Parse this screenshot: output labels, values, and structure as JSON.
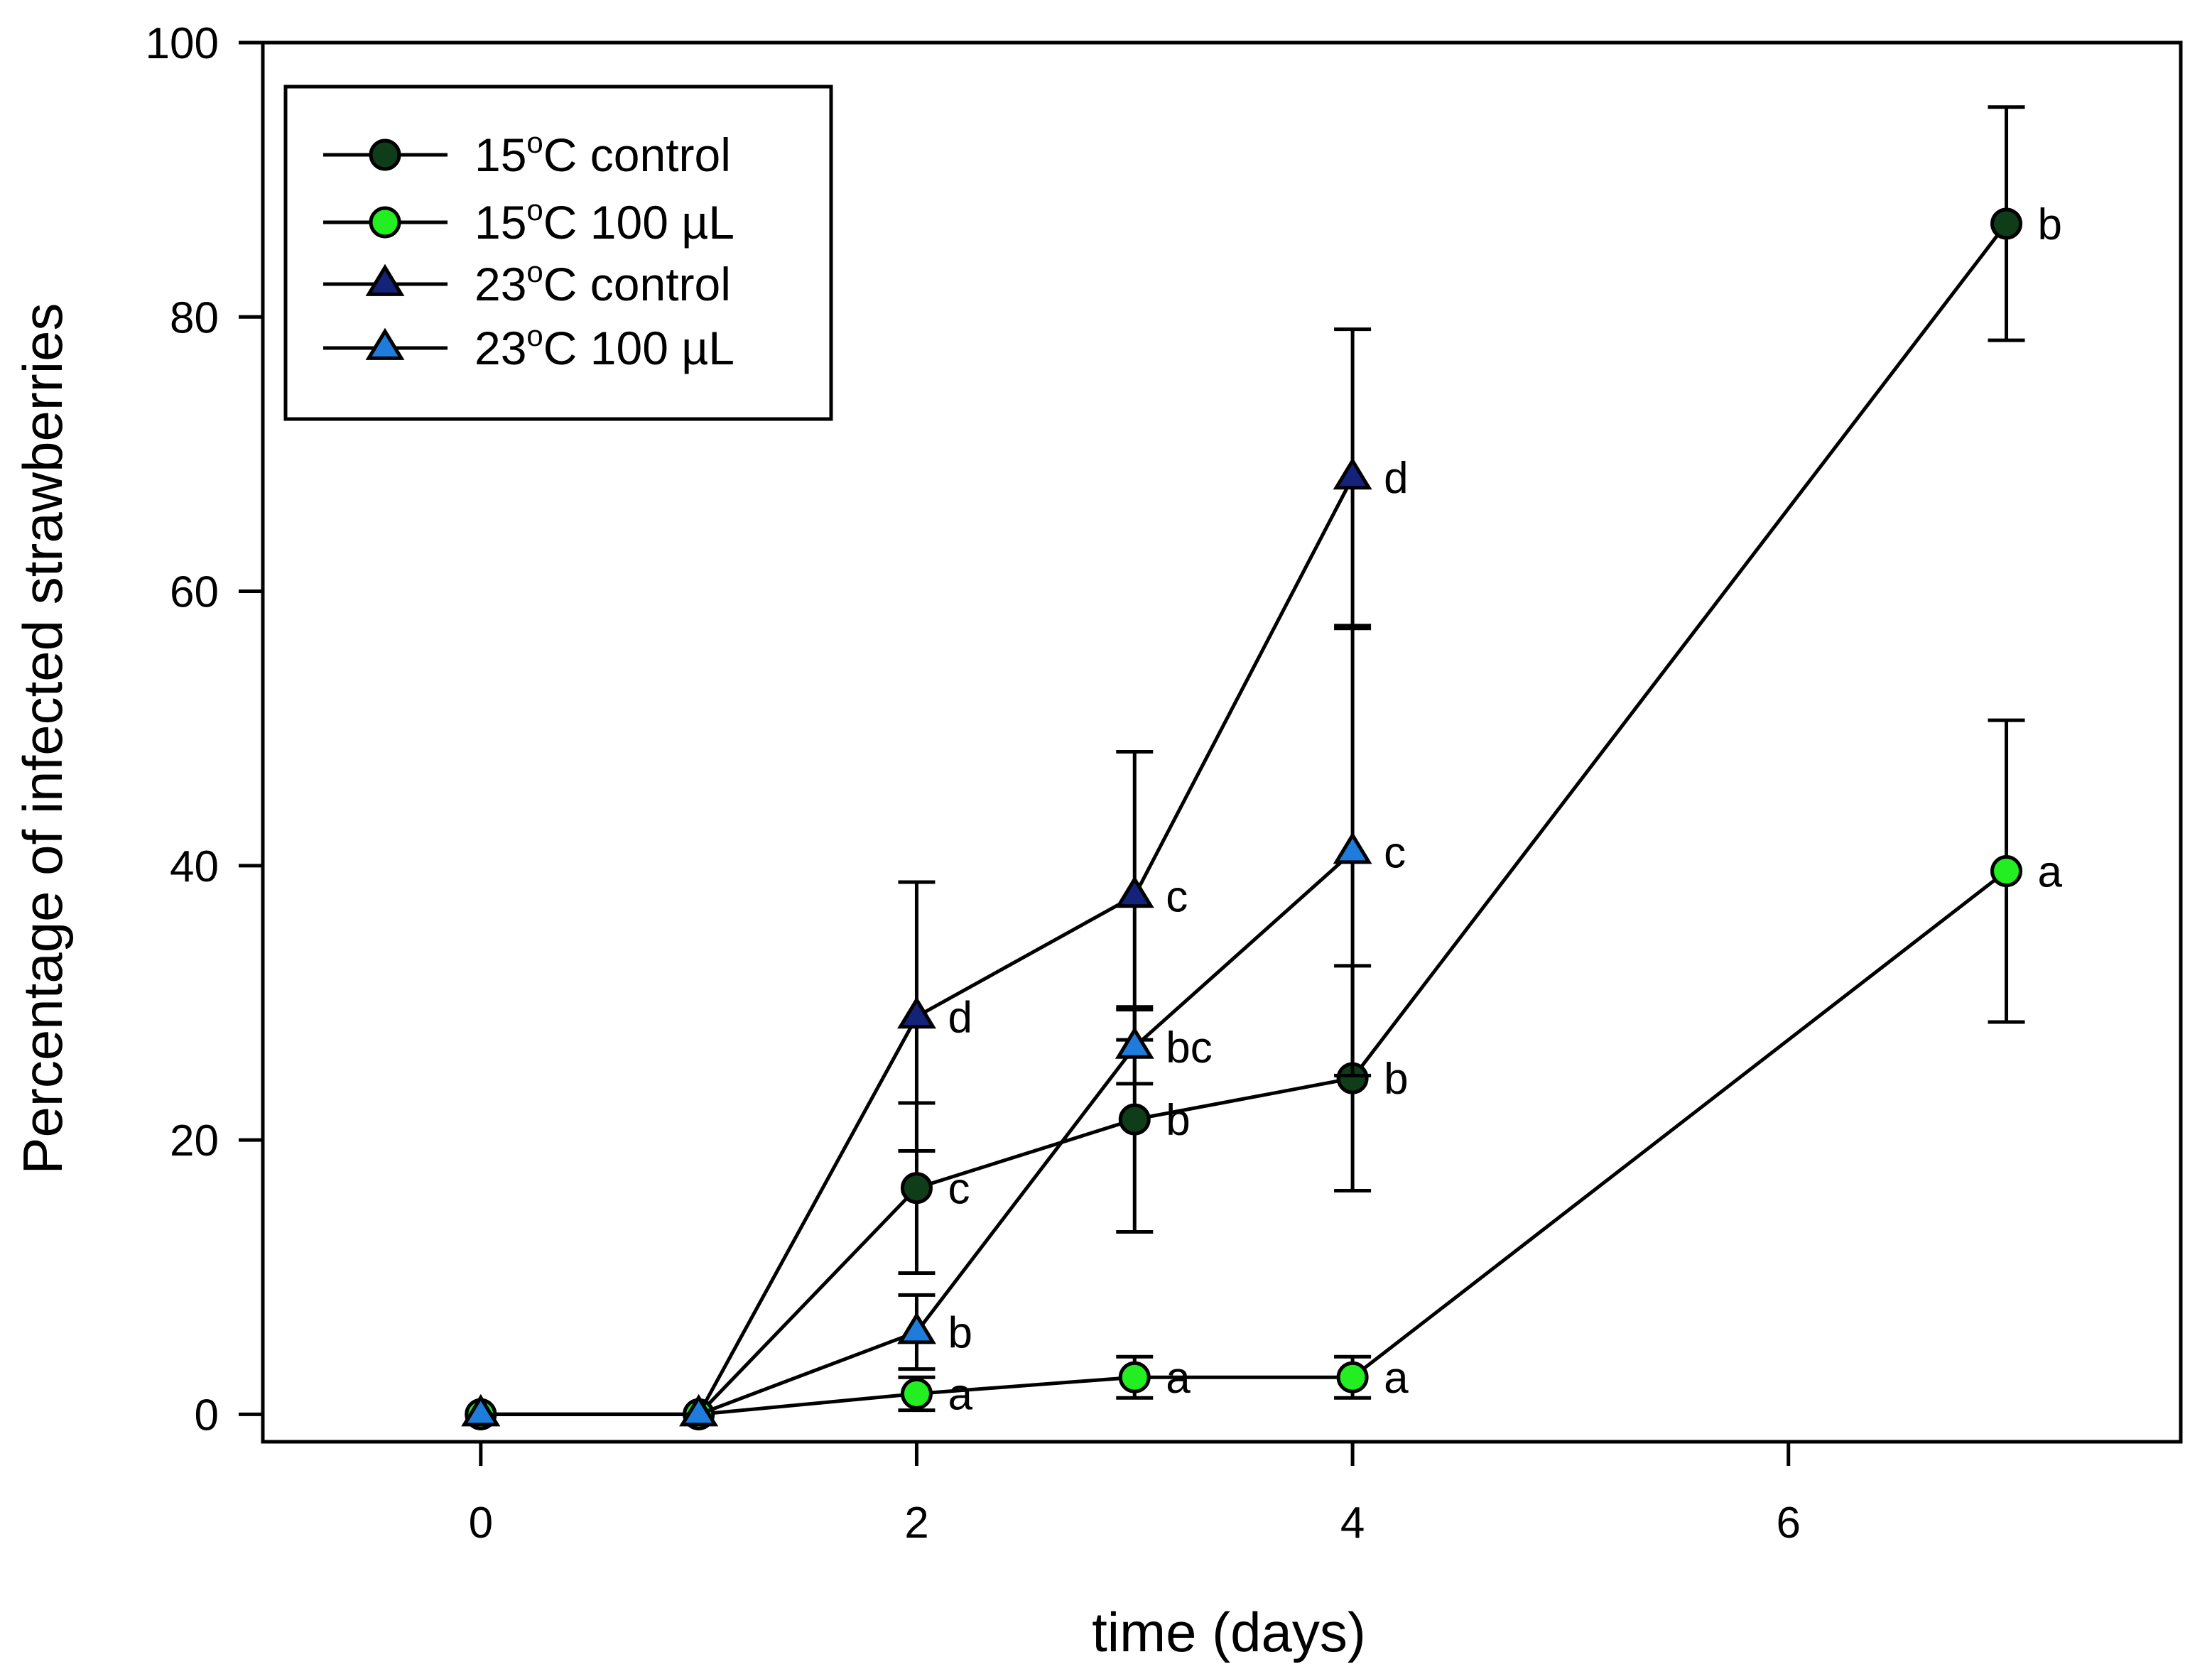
{
  "chart_data": {
    "type": "line",
    "title": "",
    "xlabel": "time (days)",
    "ylabel": "Percentage of infected strawberries",
    "xlim": [
      -1,
      7.8
    ],
    "ylim": [
      -2,
      100
    ],
    "xticks": [
      0,
      2,
      4,
      6
    ],
    "yticks": [
      0,
      20,
      40,
      60,
      80,
      100
    ],
    "grid": false,
    "legend_position": "top-left",
    "series": [
      {
        "name": "15ºC control",
        "name_parts": [
          "15",
          "o",
          "C control"
        ],
        "marker": "circle",
        "color": "#0f3d1a",
        "x": [
          0,
          1,
          2,
          3,
          4,
          7
        ],
        "y": [
          0,
          0,
          16.5,
          21.5,
          24.5,
          86.8
        ],
        "err": [
          0,
          0,
          6.2,
          8.2,
          8.2,
          8.5
        ],
        "labels": [
          "",
          "",
          "c",
          "b",
          "b",
          "b"
        ]
      },
      {
        "name": "15ºC 100 µL",
        "name_parts": [
          "15",
          "o",
          "C 100 µL"
        ],
        "marker": "circle",
        "color": "#22ee22",
        "x": [
          0,
          1,
          2,
          3,
          4,
          7
        ],
        "y": [
          0,
          0,
          1.5,
          2.7,
          2.7,
          39.6
        ],
        "err": [
          0,
          0,
          1.2,
          1.5,
          1.5,
          11
        ],
        "labels": [
          "",
          "",
          "a",
          "a",
          "a",
          "a"
        ]
      },
      {
        "name": "23ºC control",
        "name_parts": [
          "23",
          "o",
          "C control"
        ],
        "marker": "triangle",
        "color": "#14237a",
        "x": [
          0,
          1,
          2,
          3,
          4
        ],
        "y": [
          0,
          0,
          29,
          37.8,
          68.3
        ],
        "err": [
          0,
          0,
          9.8,
          10.5,
          10.8
        ],
        "labels": [
          "",
          "",
          "d",
          "c",
          "d"
        ]
      },
      {
        "name": "23ºC 100 µL",
        "name_parts": [
          "23",
          "o",
          "C 100 µL"
        ],
        "marker": "triangle",
        "color": "#1e7ddc",
        "x": [
          0,
          1,
          2,
          3,
          4
        ],
        "y": [
          0,
          0,
          6,
          26.8,
          41
        ],
        "err": [
          0,
          0,
          2.7,
          2.7,
          16.3
        ],
        "labels": [
          "",
          "",
          "b",
          "bc",
          "c"
        ]
      }
    ]
  }
}
